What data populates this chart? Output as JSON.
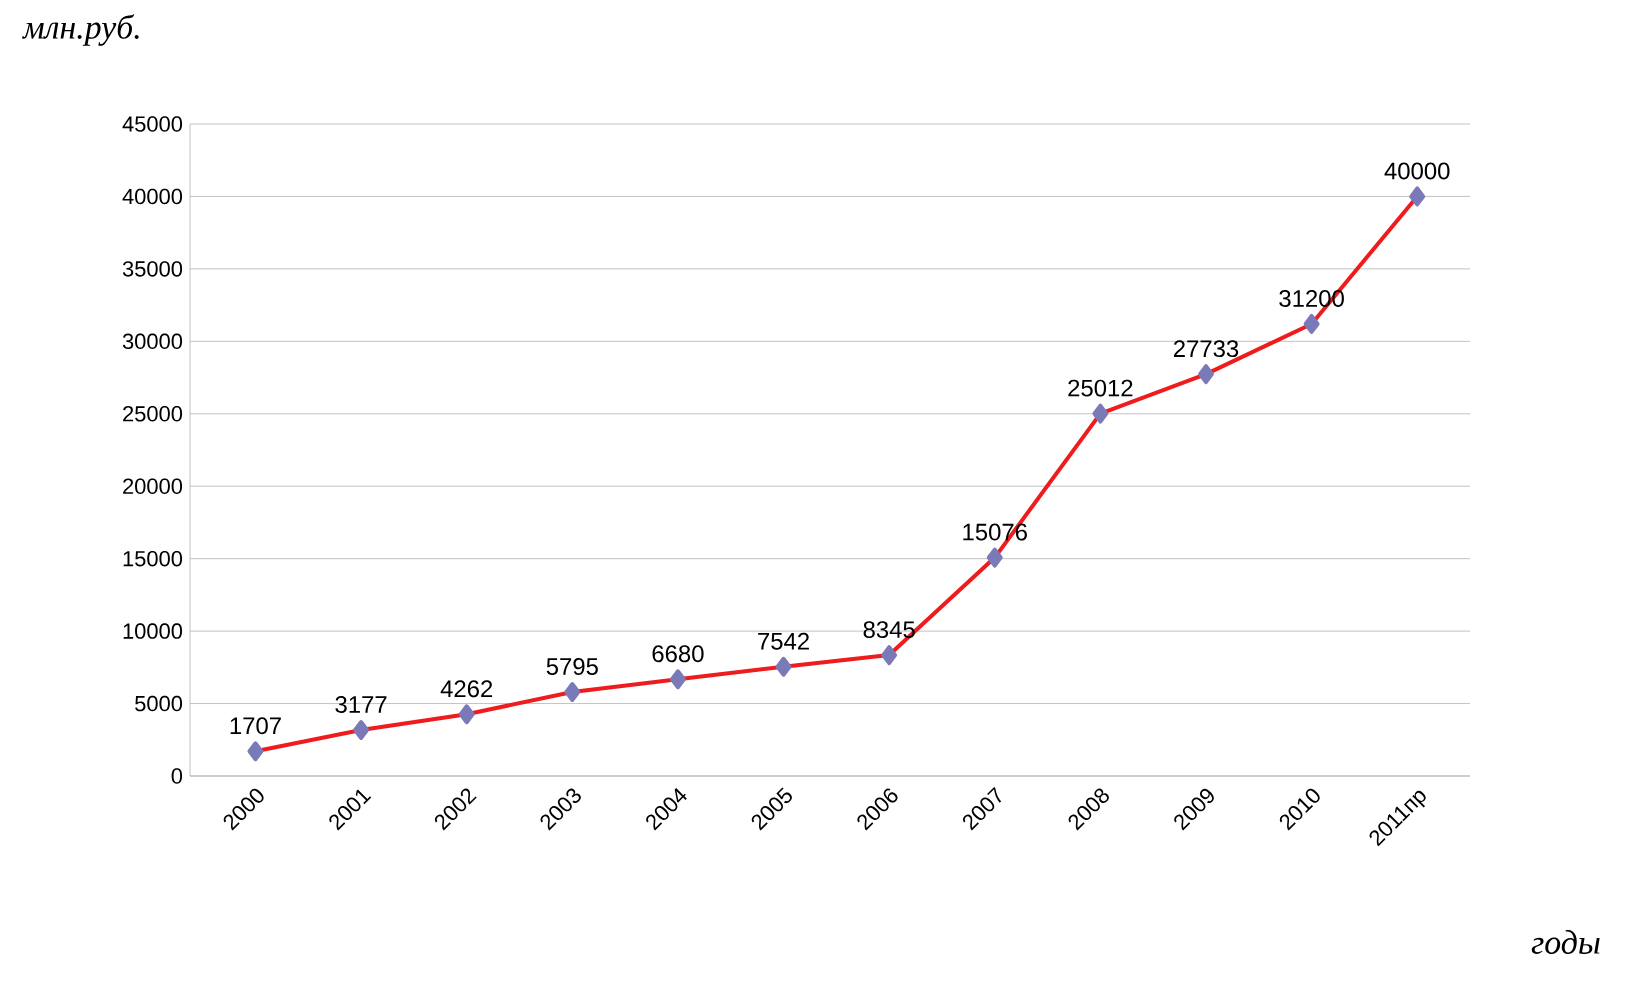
{
  "chart_data": {
    "type": "line",
    "xlabel": "годы",
    "ylabel": "млн.руб.",
    "categories": [
      "2000",
      "2001",
      "2002",
      "2003",
      "2004",
      "2005",
      "2006",
      "2007",
      "2008",
      "2009",
      "2010",
      "2011пр"
    ],
    "series": [
      {
        "color": "#ee1c1c",
        "values": [
          1707,
          3177,
          4262,
          5795,
          6680,
          7542,
          8345,
          15076,
          25012,
          27733,
          31200,
          40000
        ]
      }
    ],
    "ylim": [
      0,
      45000
    ],
    "yticks": [
      0,
      5000,
      10000,
      15000,
      20000,
      25000,
      30000,
      35000,
      40000,
      45000
    ],
    "grid": "y",
    "marker": "diamond",
    "line_style": "solid",
    "data_labels": true
  }
}
